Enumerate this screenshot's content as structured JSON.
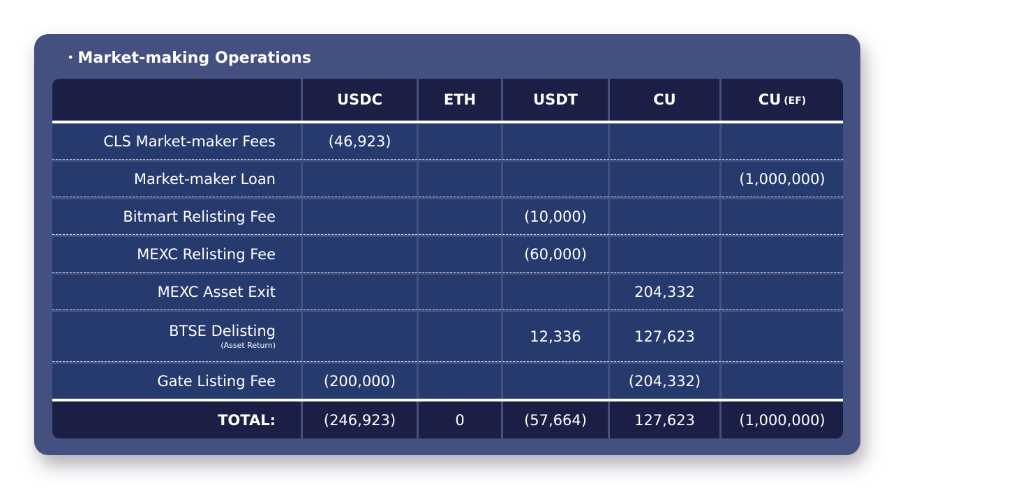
{
  "title": "Market-making Operations",
  "columns": [
    "",
    "USDC",
    "ETH",
    "USDT",
    "CU",
    "CU"
  ],
  "columns_suffix": [
    "",
    "",
    "",
    "",
    "",
    "(EF)"
  ],
  "rows": [
    {
      "label": "CLS Market-maker Fees",
      "sublabel": "",
      "values": [
        "(46,923)",
        "",
        "",
        "",
        ""
      ]
    },
    {
      "label": "Market-maker Loan",
      "sublabel": "",
      "values": [
        "",
        "",
        "",
        "",
        "(1,000,000)"
      ]
    },
    {
      "label": "Bitmart Relisting Fee",
      "sublabel": "",
      "values": [
        "",
        "",
        "(10,000)",
        "",
        ""
      ]
    },
    {
      "label": "MEXC Relisting Fee",
      "sublabel": "",
      "values": [
        "",
        "",
        "(60,000)",
        "",
        ""
      ]
    },
    {
      "label": "MEXC Asset Exit",
      "sublabel": "",
      "values": [
        "",
        "",
        "",
        "204,332",
        ""
      ]
    },
    {
      "label": "BTSE Delisting",
      "sublabel": "(Asset Return)",
      "values": [
        "",
        "",
        "12,336",
        "127,623",
        ""
      ]
    },
    {
      "label": "Gate Listing Fee",
      "sublabel": "",
      "values": [
        "(200,000)",
        "",
        "",
        "(204,332)",
        ""
      ]
    }
  ],
  "total": {
    "label": "TOTAL:",
    "values": [
      "(246,923)",
      "0",
      "(57,664)",
      "127,623",
      "(1,000,000)"
    ]
  },
  "colors": {
    "card": "#44507f",
    "header": "#1b1f45",
    "row": "#273a6e",
    "text": "#ffffff"
  }
}
